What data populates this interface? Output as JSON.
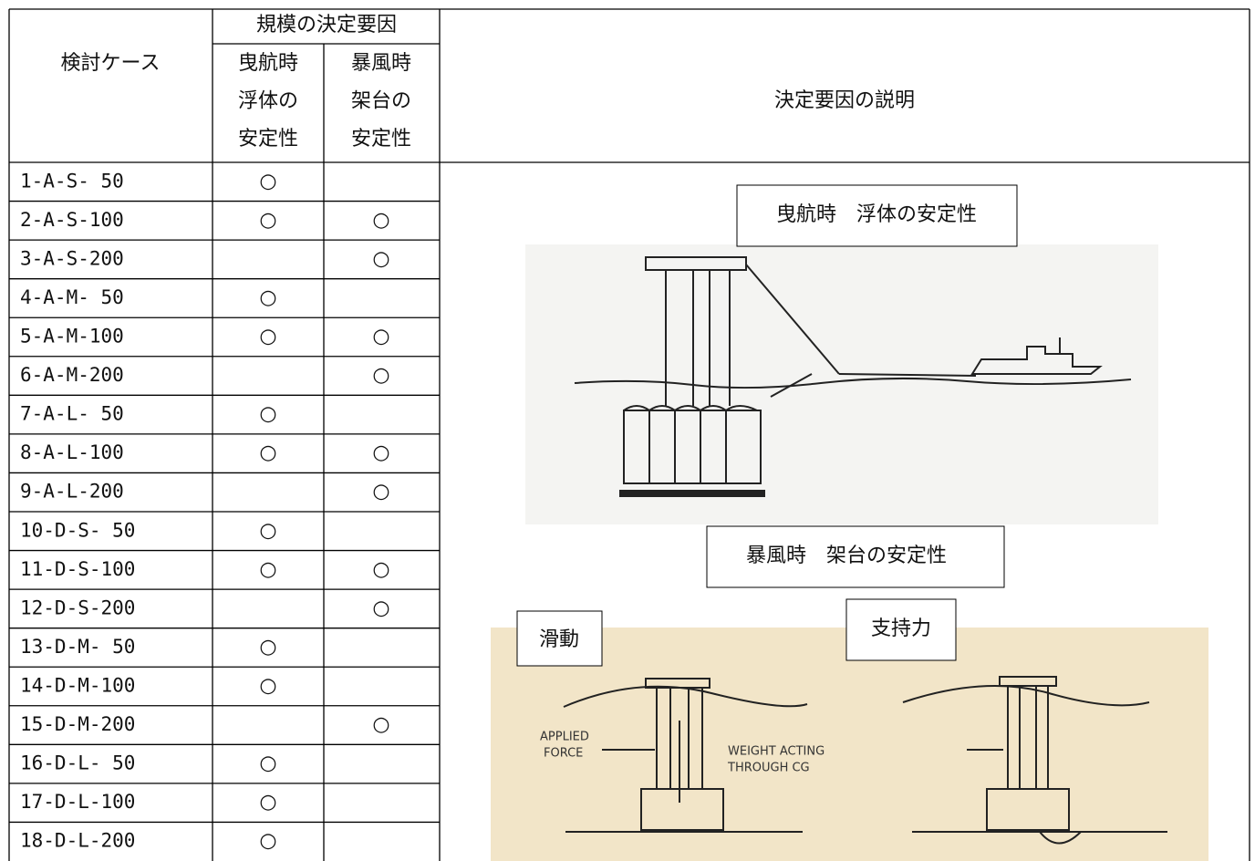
{
  "table": {
    "header": {
      "case": "検討ケース",
      "group": "規模の決定要因",
      "columns": [
        [
          "曳航時",
          "浮体の",
          "安定性"
        ],
        [
          "暴風時",
          "架台の",
          "安定性"
        ]
      ],
      "description": "決定要因の説明"
    },
    "rows": [
      {
        "case": "1-A-S- 50",
        "towing": "○"
      },
      {
        "case": "2-A-S-100",
        "towing": "○",
        "storm": "○"
      },
      {
        "case": "3-A-S-200",
        "storm": "○"
      },
      {
        "case": "4-A-M- 50",
        "towing": "○"
      },
      {
        "case": "5-A-M-100",
        "towing": "○",
        "storm": "○"
      },
      {
        "case": "6-A-M-200",
        "storm": "○"
      },
      {
        "case": "7-A-L- 50",
        "towing": "○"
      },
      {
        "case": "8-A-L-100",
        "towing": "○",
        "storm": "○"
      },
      {
        "case": "9-A-L-200",
        "storm": "○"
      },
      {
        "case": "10-D-S- 50",
        "towing": "○"
      },
      {
        "case": "11-D-S-100",
        "towing": "○",
        "storm": "○"
      },
      {
        "case": "12-D-S-200",
        "storm": "○"
      },
      {
        "case": "13-D-M- 50",
        "towing": "○"
      },
      {
        "case": "14-D-M-100",
        "towing": "○"
      },
      {
        "case": "15-D-M-200",
        "storm": "○"
      },
      {
        "case": "16-D-L- 50",
        "towing": "○"
      },
      {
        "case": "17-D-L-100",
        "towing": "○"
      },
      {
        "case": "18-D-L-200",
        "towing": "○"
      }
    ]
  },
  "figures": {
    "towing_label": "曳航時　浮体の安定性",
    "storm_label": "暴風時　架台の安定性",
    "sliding_label": "滑動",
    "bearing_label": "支持力",
    "applied_force": [
      "APPLIED",
      "FORCE"
    ],
    "weight_acting": [
      "WEIGHT ACTING",
      "THROUGH CG"
    ]
  }
}
